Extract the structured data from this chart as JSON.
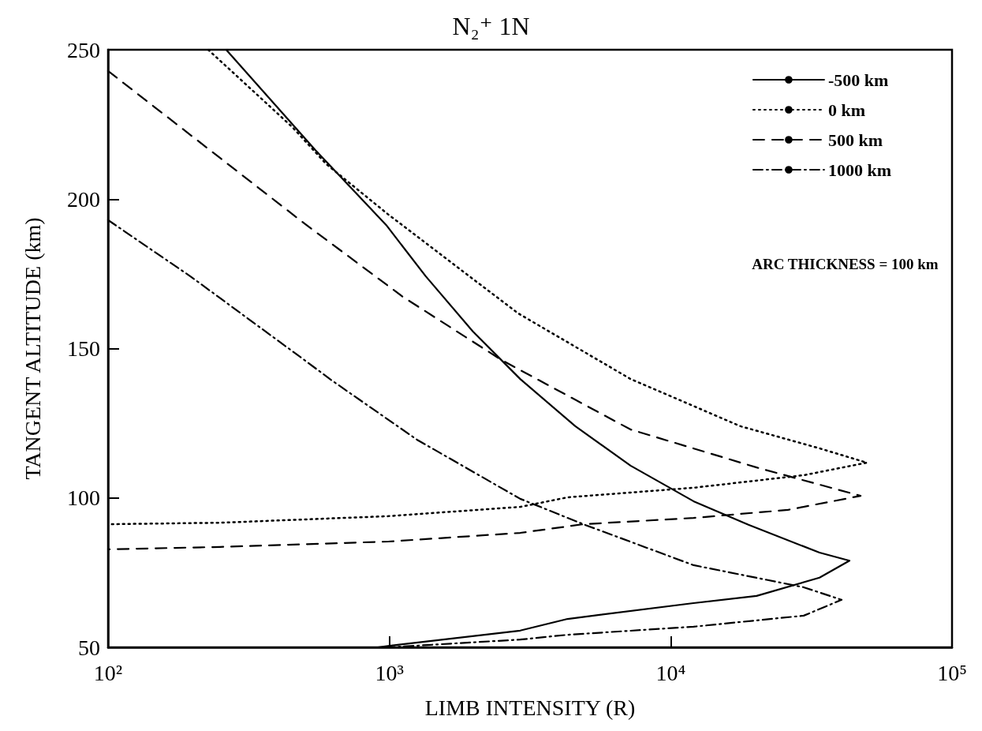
{
  "chart_data": {
    "type": "line",
    "title": "N₂⁺ 1N",
    "xlabel": "LIMB INTENSITY (R)",
    "ylabel": "TANGENT ALTITUDE (km)",
    "log": "x",
    "xlim": [
      100,
      100000
    ],
    "xticks": [
      {
        "value": 100,
        "label": "10²"
      },
      {
        "value": 1000,
        "label": "10³"
      },
      {
        "value": 10000,
        "label": "10⁴"
      },
      {
        "value": 100000,
        "label": "10⁵"
      }
    ],
    "ylim": [
      50,
      250
    ],
    "yticks": [
      50,
      100,
      150,
      200,
      250
    ],
    "grid": false,
    "legend": "top right",
    "marker": "none",
    "annotations": [
      "ARC THICKNESS = 100 km"
    ],
    "series": [
      {
        "name": "-500 km",
        "color": "#000000",
        "line_style": "solid",
        "x": [
          263,
          546,
          975,
          1346,
          1982,
          2918,
          4580,
          7200,
          12050,
          18900,
          33800,
          43200,
          33800,
          20200,
          12050,
          4300,
          2918,
          1000,
          910
        ],
        "values": [
          250,
          216.4,
          191.3,
          174.2,
          155.7,
          139.8,
          124,
          110.8,
          98.9,
          91,
          81.7,
          79,
          73.3,
          67.2,
          64.8,
          59.5,
          55.6,
          50.5,
          50
        ]
      },
      {
        "name": "0 km",
        "color": "#000000",
        "line_style": "dotted",
        "x": [
          227,
          452,
          597,
          993,
          2866,
          7200,
          17700,
          33800,
          49800,
          29700,
          12050,
          4300,
          2918,
          993,
          250,
          100
        ],
        "values": [
          250,
          224.1,
          211.7,
          194.8,
          161.8,
          139.8,
          124,
          116.6,
          111.8,
          107.6,
          103.4,
          100.2,
          97,
          93.9,
          91.7,
          91.2
        ]
      },
      {
        "name": "500 km",
        "color": "#000000",
        "line_style": "dashed",
        "x": [
          100,
          198,
          498,
          1117,
          2500,
          7200,
          20200,
          47300,
          26100,
          12050,
          4890,
          2918,
          993,
          250,
          100
        ],
        "values": [
          242.9,
          221.2,
          191.9,
          167.3,
          146.2,
          122.9,
          110.2,
          100.7,
          96,
          93.3,
          91.2,
          88.3,
          85.4,
          83.6,
          82.8
        ]
      },
      {
        "name": "1000 km",
        "color": "#000000",
        "line_style": "dashdot",
        "x": [
          100,
          198,
          498,
          625,
          1253,
          2918,
          4890,
          12050,
          29700,
          40500,
          29700,
          12050,
          4300,
          2918,
          993
        ],
        "values": [
          193,
          173.9,
          146.2,
          139.3,
          119.5,
          99.7,
          91.2,
          77.5,
          70.1,
          65.9,
          60.6,
          56.9,
          54.2,
          52.6,
          50
        ]
      }
    ]
  }
}
